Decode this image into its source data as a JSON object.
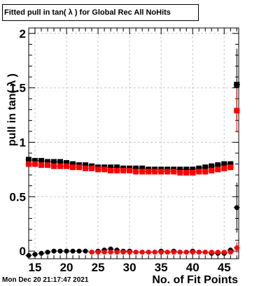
{
  "title": "Fitted pull in tan( λ ) for Global Rec All NoHits",
  "timestamp": "Mon Dec 20 21:17:47 2021",
  "colors": {
    "black_series": "#000000",
    "red_series": "#ff0000",
    "grid": "#c8c8c8"
  },
  "chart_data": {
    "type": "scatter",
    "xlabel": "No. of Fit Points",
    "ylabel": "pull in tan( λ )",
    "xlim": [
      14,
      47.3
    ],
    "ylim": [
      -0.07,
      2.05
    ],
    "xticks": [
      15,
      20,
      25,
      30,
      35,
      40,
      45
    ],
    "yticks": [
      0,
      0.5,
      1,
      1.5,
      2
    ],
    "ytick_labels": [
      "0",
      "0.5",
      "1",
      "1.5",
      "2"
    ],
    "grid": true,
    "x": [
      14,
      15,
      16,
      17,
      18,
      19,
      20,
      21,
      22,
      23,
      24,
      25,
      26,
      27,
      28,
      29,
      30,
      31,
      32,
      33,
      34,
      35,
      36,
      37,
      38,
      39,
      40,
      41,
      42,
      43,
      44,
      45,
      46,
      47
    ],
    "series": [
      {
        "name": "",
        "marker": "square",
        "color": "#000000",
        "values": [
          0.84,
          0.83,
          0.83,
          0.82,
          0.82,
          0.82,
          0.81,
          0.8,
          0.79,
          0.79,
          0.78,
          0.77,
          0.77,
          0.77,
          0.77,
          0.76,
          0.76,
          0.76,
          0.76,
          0.75,
          0.75,
          0.75,
          0.75,
          0.75,
          0.75,
          0.75,
          0.75,
          0.76,
          0.77,
          0.78,
          0.79,
          0.8,
          0.8,
          1.53
        ],
        "errors": [
          0.02,
          0.02,
          0.01,
          0.01,
          0.01,
          0.01,
          0.01,
          0.01,
          0.01,
          0.01,
          0.01,
          0.01,
          0.01,
          0.01,
          0.01,
          0.01,
          0.01,
          0.01,
          0.01,
          0.01,
          0.01,
          0.01,
          0.01,
          0.01,
          0.01,
          0.01,
          0.01,
          0.01,
          0.01,
          0.01,
          0.01,
          0.01,
          0.02,
          0.33
        ]
      },
      {
        "name": "",
        "marker": "square",
        "color": "#ff0000",
        "values": [
          0.8,
          0.8,
          0.79,
          0.79,
          0.78,
          0.78,
          0.78,
          0.77,
          0.77,
          0.76,
          0.76,
          0.75,
          0.75,
          0.74,
          0.74,
          0.74,
          0.74,
          0.73,
          0.73,
          0.73,
          0.73,
          0.73,
          0.73,
          0.73,
          0.72,
          0.72,
          0.72,
          0.73,
          0.73,
          0.74,
          0.75,
          0.76,
          0.77,
          1.29
        ],
        "errors": [
          0.02,
          0.01,
          0.01,
          0.01,
          0.01,
          0.01,
          0.01,
          0.01,
          0.01,
          0.01,
          0.01,
          0.01,
          0.01,
          0.01,
          0.01,
          0.01,
          0.01,
          0.01,
          0.01,
          0.01,
          0.01,
          0.01,
          0.01,
          0.01,
          0.01,
          0.01,
          0.01,
          0.01,
          0.01,
          0.01,
          0.01,
          0.01,
          0.02,
          0.2
        ]
      },
      {
        "name": "",
        "marker": "circle",
        "color": "#000000",
        "values": [
          -0.04,
          -0.03,
          -0.02,
          -0.01,
          0.0,
          0.0,
          0.0,
          0.0,
          0.0,
          0.0,
          -0.01,
          0.0,
          0.01,
          0.02,
          0.01,
          0.0,
          0.0,
          -0.01,
          -0.01,
          -0.01,
          -0.01,
          0.0,
          -0.01,
          0.0,
          -0.01,
          -0.01,
          0.0,
          -0.01,
          -0.01,
          -0.02,
          -0.02,
          -0.02,
          0.01,
          0.4
        ],
        "errors": [
          0.01,
          0.01,
          0.01,
          0.01,
          0.01,
          0.01,
          0.01,
          0.01,
          0.01,
          0.01,
          0.01,
          0.01,
          0.01,
          0.01,
          0.01,
          0.01,
          0.01,
          0.01,
          0.01,
          0.01,
          0.01,
          0.01,
          0.01,
          0.01,
          0.01,
          0.01,
          0.01,
          0.01,
          0.01,
          0.01,
          0.01,
          0.01,
          0.02,
          0.23
        ]
      },
      {
        "name": "",
        "marker": "circle",
        "color": "#ff0000",
        "values": [
          null,
          null,
          null,
          null,
          null,
          null,
          null,
          null,
          null,
          null,
          -0.01,
          -0.01,
          -0.01,
          -0.01,
          -0.01,
          -0.01,
          -0.01,
          -0.01,
          -0.01,
          -0.01,
          -0.01,
          -0.01,
          -0.01,
          -0.01,
          -0.01,
          -0.01,
          -0.01,
          -0.01,
          -0.01,
          -0.01,
          -0.01,
          -0.01,
          -0.01,
          0.03
        ],
        "errors": [
          null,
          null,
          null,
          null,
          null,
          null,
          null,
          null,
          null,
          null,
          0.01,
          0.01,
          0.01,
          0.01,
          0.01,
          0.01,
          0.01,
          0.01,
          0.01,
          0.01,
          0.01,
          0.01,
          0.01,
          0.01,
          0.01,
          0.01,
          0.01,
          0.01,
          0.01,
          0.01,
          0.01,
          0.01,
          0.01,
          0.05
        ]
      }
    ]
  }
}
